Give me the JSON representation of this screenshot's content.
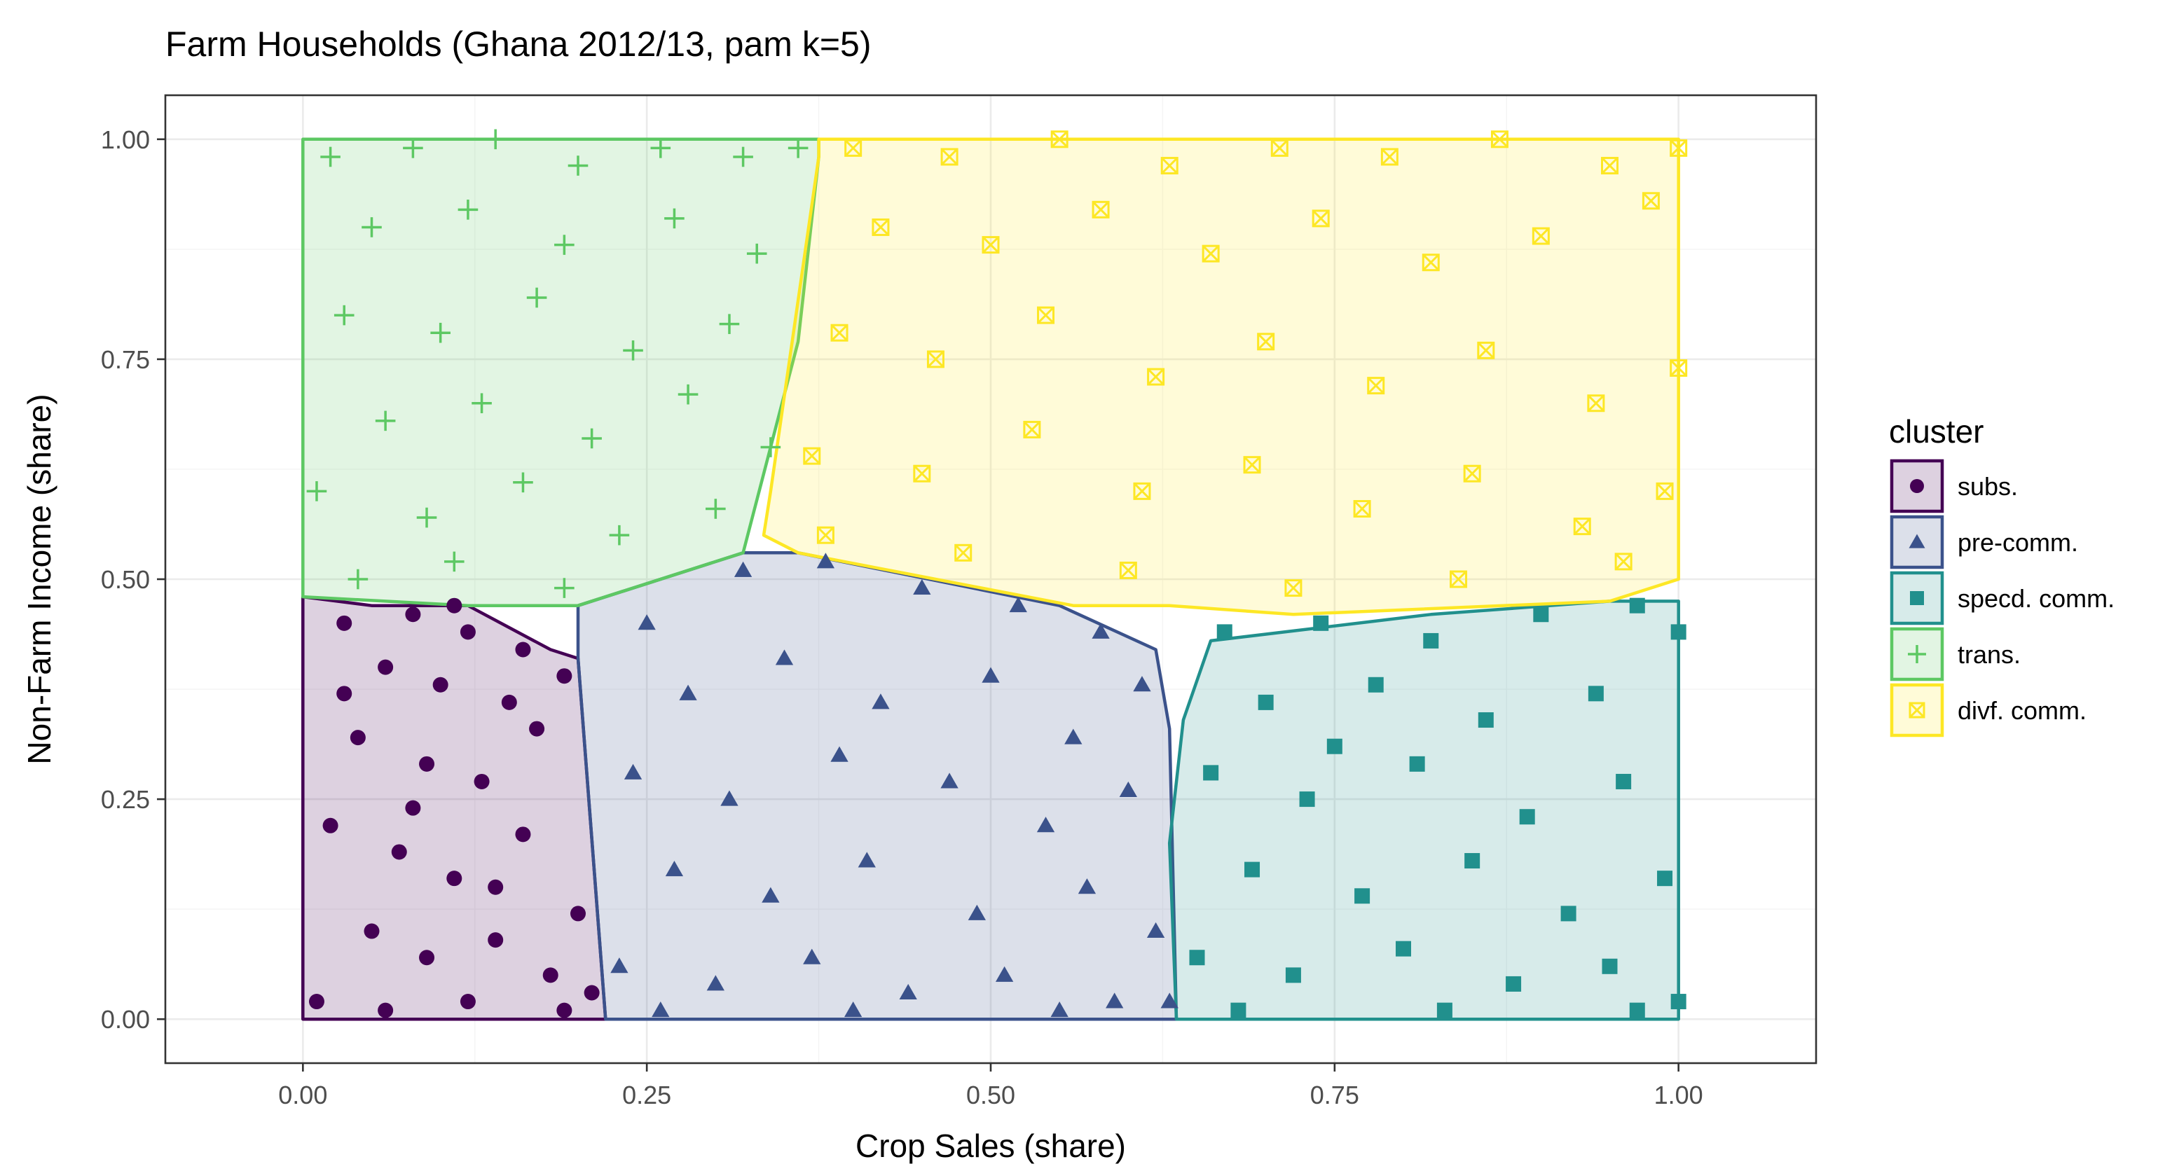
{
  "chart_data": {
    "type": "scatter",
    "title": "Farm Households (Ghana 2012/13, pam k=5)",
    "xlabel": "Crop Sales (share)",
    "ylabel": "Non-Farm Income (share)",
    "xlim": [
      -0.1,
      1.1
    ],
    "ylim": [
      -0.05,
      1.05
    ],
    "x_ticks": [
      "0.00",
      "0.25",
      "0.50",
      "0.75",
      "1.00"
    ],
    "y_ticks": [
      "0.00",
      "0.25",
      "0.50",
      "0.75",
      "1.00"
    ],
    "grid": true,
    "legend": {
      "title": "cluster",
      "placement": "right"
    },
    "series": [
      {
        "name": "subs.",
        "marker": "circle",
        "color": "#440154",
        "hull": [
          [
            0,
            0
          ],
          [
            0.22,
            0
          ],
          [
            0.2,
            0.41
          ],
          [
            0.18,
            0.42
          ],
          [
            0.12,
            0.47
          ],
          [
            0.05,
            0.47
          ],
          [
            0,
            0.48
          ]
        ],
        "points": [
          [
            0.03,
            0.45
          ],
          [
            0.08,
            0.46
          ],
          [
            0.11,
            0.47
          ],
          [
            0.06,
            0.4
          ],
          [
            0.12,
            0.44
          ],
          [
            0.15,
            0.36
          ],
          [
            0.04,
            0.32
          ],
          [
            0.09,
            0.29
          ],
          [
            0.13,
            0.27
          ],
          [
            0.17,
            0.33
          ],
          [
            0.19,
            0.39
          ],
          [
            0.02,
            0.22
          ],
          [
            0.07,
            0.19
          ],
          [
            0.11,
            0.16
          ],
          [
            0.16,
            0.21
          ],
          [
            0.2,
            0.12
          ],
          [
            0.05,
            0.1
          ],
          [
            0.09,
            0.07
          ],
          [
            0.14,
            0.09
          ],
          [
            0.18,
            0.05
          ],
          [
            0.01,
            0.02
          ],
          [
            0.06,
            0.01
          ],
          [
            0.12,
            0.02
          ],
          [
            0.19,
            0.01
          ],
          [
            0.21,
            0.03
          ],
          [
            0.03,
            0.37
          ],
          [
            0.1,
            0.38
          ],
          [
            0.14,
            0.15
          ],
          [
            0.08,
            0.24
          ],
          [
            0.16,
            0.42
          ]
        ]
      },
      {
        "name": "pre-comm.",
        "marker": "triangle",
        "color": "#3b528b",
        "hull": [
          [
            0.22,
            0
          ],
          [
            0.635,
            0
          ],
          [
            0.63,
            0.33
          ],
          [
            0.62,
            0.42
          ],
          [
            0.55,
            0.47
          ],
          [
            0.36,
            0.53
          ],
          [
            0.32,
            0.53
          ],
          [
            0.2,
            0.47
          ],
          [
            0.2,
            0.41
          ]
        ],
        "points": [
          [
            0.25,
            0.45
          ],
          [
            0.32,
            0.51
          ],
          [
            0.38,
            0.52
          ],
          [
            0.45,
            0.49
          ],
          [
            0.52,
            0.47
          ],
          [
            0.58,
            0.44
          ],
          [
            0.61,
            0.38
          ],
          [
            0.28,
            0.37
          ],
          [
            0.35,
            0.41
          ],
          [
            0.42,
            0.36
          ],
          [
            0.5,
            0.39
          ],
          [
            0.56,
            0.32
          ],
          [
            0.24,
            0.28
          ],
          [
            0.31,
            0.25
          ],
          [
            0.39,
            0.3
          ],
          [
            0.47,
            0.27
          ],
          [
            0.54,
            0.22
          ],
          [
            0.6,
            0.26
          ],
          [
            0.27,
            0.17
          ],
          [
            0.34,
            0.14
          ],
          [
            0.41,
            0.18
          ],
          [
            0.49,
            0.12
          ],
          [
            0.57,
            0.15
          ],
          [
            0.62,
            0.1
          ],
          [
            0.23,
            0.06
          ],
          [
            0.3,
            0.04
          ],
          [
            0.37,
            0.07
          ],
          [
            0.44,
            0.03
          ],
          [
            0.51,
            0.05
          ],
          [
            0.59,
            0.02
          ],
          [
            0.26,
            0.01
          ],
          [
            0.4,
            0.01
          ],
          [
            0.55,
            0.01
          ],
          [
            0.63,
            0.02
          ]
        ]
      },
      {
        "name": "specd. comm.",
        "marker": "square",
        "color": "#21908d",
        "hull": [
          [
            0.635,
            0
          ],
          [
            1,
            0
          ],
          [
            1,
            0.475
          ],
          [
            0.95,
            0.475
          ],
          [
            0.82,
            0.46
          ],
          [
            0.66,
            0.43
          ],
          [
            0.64,
            0.34
          ],
          [
            0.63,
            0.2
          ]
        ],
        "points": [
          [
            0.67,
            0.44
          ],
          [
            0.74,
            0.45
          ],
          [
            0.82,
            0.43
          ],
          [
            0.9,
            0.46
          ],
          [
            0.97,
            0.47
          ],
          [
            1,
            0.44
          ],
          [
            0.7,
            0.36
          ],
          [
            0.78,
            0.38
          ],
          [
            0.86,
            0.34
          ],
          [
            0.94,
            0.37
          ],
          [
            0.66,
            0.28
          ],
          [
            0.73,
            0.25
          ],
          [
            0.81,
            0.29
          ],
          [
            0.89,
            0.23
          ],
          [
            0.96,
            0.27
          ],
          [
            0.69,
            0.17
          ],
          [
            0.77,
            0.14
          ],
          [
            0.85,
            0.18
          ],
          [
            0.92,
            0.12
          ],
          [
            0.99,
            0.16
          ],
          [
            0.65,
            0.07
          ],
          [
            0.72,
            0.05
          ],
          [
            0.8,
            0.08
          ],
          [
            0.88,
            0.04
          ],
          [
            0.95,
            0.06
          ],
          [
            1,
            0.02
          ],
          [
            0.68,
            0.01
          ],
          [
            0.83,
            0.01
          ],
          [
            0.97,
            0.01
          ],
          [
            0.75,
            0.31
          ]
        ]
      },
      {
        "name": "trans.",
        "marker": "plus",
        "color": "#5dc863",
        "hull": [
          [
            0,
            0.48
          ],
          [
            0.12,
            0.47
          ],
          [
            0.2,
            0.47
          ],
          [
            0.32,
            0.53
          ],
          [
            0.36,
            0.77
          ],
          [
            0.375,
            0.98
          ],
          [
            0.375,
            1
          ],
          [
            0,
            1
          ]
        ],
        "points": [
          [
            0.02,
            0.98
          ],
          [
            0.08,
            0.99
          ],
          [
            0.14,
            1
          ],
          [
            0.2,
            0.97
          ],
          [
            0.26,
            0.99
          ],
          [
            0.32,
            0.98
          ],
          [
            0.36,
            0.99
          ],
          [
            0.05,
            0.9
          ],
          [
            0.12,
            0.92
          ],
          [
            0.19,
            0.88
          ],
          [
            0.27,
            0.91
          ],
          [
            0.33,
            0.87
          ],
          [
            0.03,
            0.8
          ],
          [
            0.1,
            0.78
          ],
          [
            0.17,
            0.82
          ],
          [
            0.24,
            0.76
          ],
          [
            0.31,
            0.79
          ],
          [
            0.06,
            0.68
          ],
          [
            0.13,
            0.7
          ],
          [
            0.21,
            0.66
          ],
          [
            0.28,
            0.71
          ],
          [
            0.01,
            0.6
          ],
          [
            0.09,
            0.57
          ],
          [
            0.16,
            0.61
          ],
          [
            0.23,
            0.55
          ],
          [
            0.3,
            0.58
          ],
          [
            0.04,
            0.5
          ],
          [
            0.11,
            0.52
          ],
          [
            0.19,
            0.49
          ],
          [
            0.34,
            0.65
          ]
        ]
      },
      {
        "name": "divf. comm.",
        "marker": "boxx",
        "color": "#fde725",
        "hull": [
          [
            0.375,
            1
          ],
          [
            1,
            1
          ],
          [
            1,
            0.5
          ],
          [
            0.95,
            0.475
          ],
          [
            0.72,
            0.46
          ],
          [
            0.63,
            0.47
          ],
          [
            0.56,
            0.47
          ],
          [
            0.36,
            0.53
          ],
          [
            0.335,
            0.55
          ],
          [
            0.34,
            0.6
          ],
          [
            0.375,
            0.98
          ]
        ],
        "points": [
          [
            0.4,
            0.99
          ],
          [
            0.47,
            0.98
          ],
          [
            0.55,
            1
          ],
          [
            0.63,
            0.97
          ],
          [
            0.71,
            0.99
          ],
          [
            0.79,
            0.98
          ],
          [
            0.87,
            1
          ],
          [
            0.95,
            0.97
          ],
          [
            1,
            0.99
          ],
          [
            0.42,
            0.9
          ],
          [
            0.5,
            0.88
          ],
          [
            0.58,
            0.92
          ],
          [
            0.66,
            0.87
          ],
          [
            0.74,
            0.91
          ],
          [
            0.82,
            0.86
          ],
          [
            0.9,
            0.89
          ],
          [
            0.98,
            0.93
          ],
          [
            0.39,
            0.78
          ],
          [
            0.46,
            0.75
          ],
          [
            0.54,
            0.8
          ],
          [
            0.62,
            0.73
          ],
          [
            0.7,
            0.77
          ],
          [
            0.78,
            0.72
          ],
          [
            0.86,
            0.76
          ],
          [
            0.94,
            0.7
          ],
          [
            1,
            0.74
          ],
          [
            0.37,
            0.64
          ],
          [
            0.45,
            0.62
          ],
          [
            0.53,
            0.67
          ],
          [
            0.61,
            0.6
          ],
          [
            0.69,
            0.63
          ],
          [
            0.77,
            0.58
          ],
          [
            0.85,
            0.62
          ],
          [
            0.93,
            0.56
          ],
          [
            0.99,
            0.6
          ],
          [
            0.38,
            0.55
          ],
          [
            0.48,
            0.53
          ],
          [
            0.6,
            0.51
          ],
          [
            0.72,
            0.49
          ],
          [
            0.84,
            0.5
          ],
          [
            0.96,
            0.52
          ]
        ]
      }
    ]
  }
}
